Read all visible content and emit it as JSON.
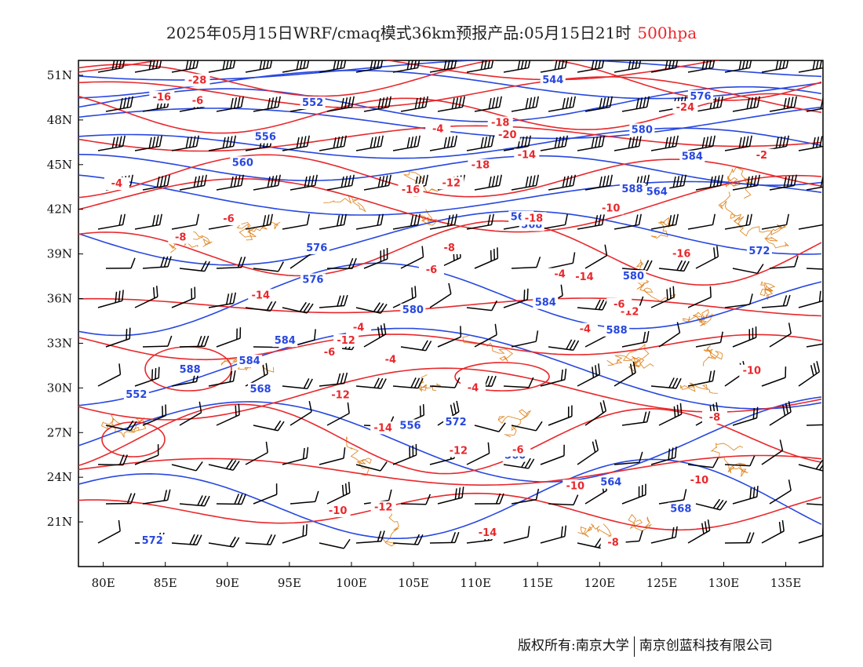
{
  "title": {
    "main": "2025年05月15日WRF/cmaq模式36km预报产品:05月15日21时",
    "level": "500hpa"
  },
  "footer": {
    "copyright": "版权所有:南京大学",
    "company": "南京创蓝科技有限公司"
  },
  "colors": {
    "height_contour": "#2747e0",
    "temperature_contour": "#e8282c",
    "border": "#e08a2a",
    "wind_barb": "#000000"
  },
  "map": {
    "lon_range": [
      78,
      138
    ],
    "lat_range": [
      18,
      52
    ],
    "x_ticks": [
      "80E",
      "85E",
      "90E",
      "95E",
      "100E",
      "105E",
      "110E",
      "115E",
      "120E",
      "125E",
      "130E",
      "135E"
    ],
    "y_ticks": [
      "51N",
      "48N",
      "45N",
      "42N",
      "39N",
      "36N",
      "33N",
      "30N",
      "27N",
      "24N",
      "21N"
    ]
  },
  "height_labels": [
    "544",
    "552",
    "556",
    "560",
    "564",
    "568",
    "572",
    "576",
    "580",
    "584",
    "588",
    "552",
    "556",
    "560",
    "564",
    "568",
    "572",
    "576",
    "580",
    "584",
    "588",
    "564",
    "576",
    "580",
    "584",
    "588",
    "584",
    "568",
    "572"
  ],
  "temperature_labels": [
    "-28",
    "-24",
    "-20",
    "-18",
    "-16",
    "-18",
    "-16",
    "-14",
    "-12",
    "-12",
    "-10",
    "-12",
    "-14",
    "-12",
    "-10",
    "-10",
    "-8",
    "-6",
    "-4",
    "-2",
    "-4",
    "-6",
    "-8",
    "-4",
    "-6",
    "-4",
    "-4",
    "-4",
    "-8",
    "-6",
    "-10",
    "-12",
    "-14",
    "-16",
    "-18",
    "-14",
    "-12",
    "-10",
    "-8",
    "-6",
    "-14",
    "-4",
    "-6"
  ]
}
